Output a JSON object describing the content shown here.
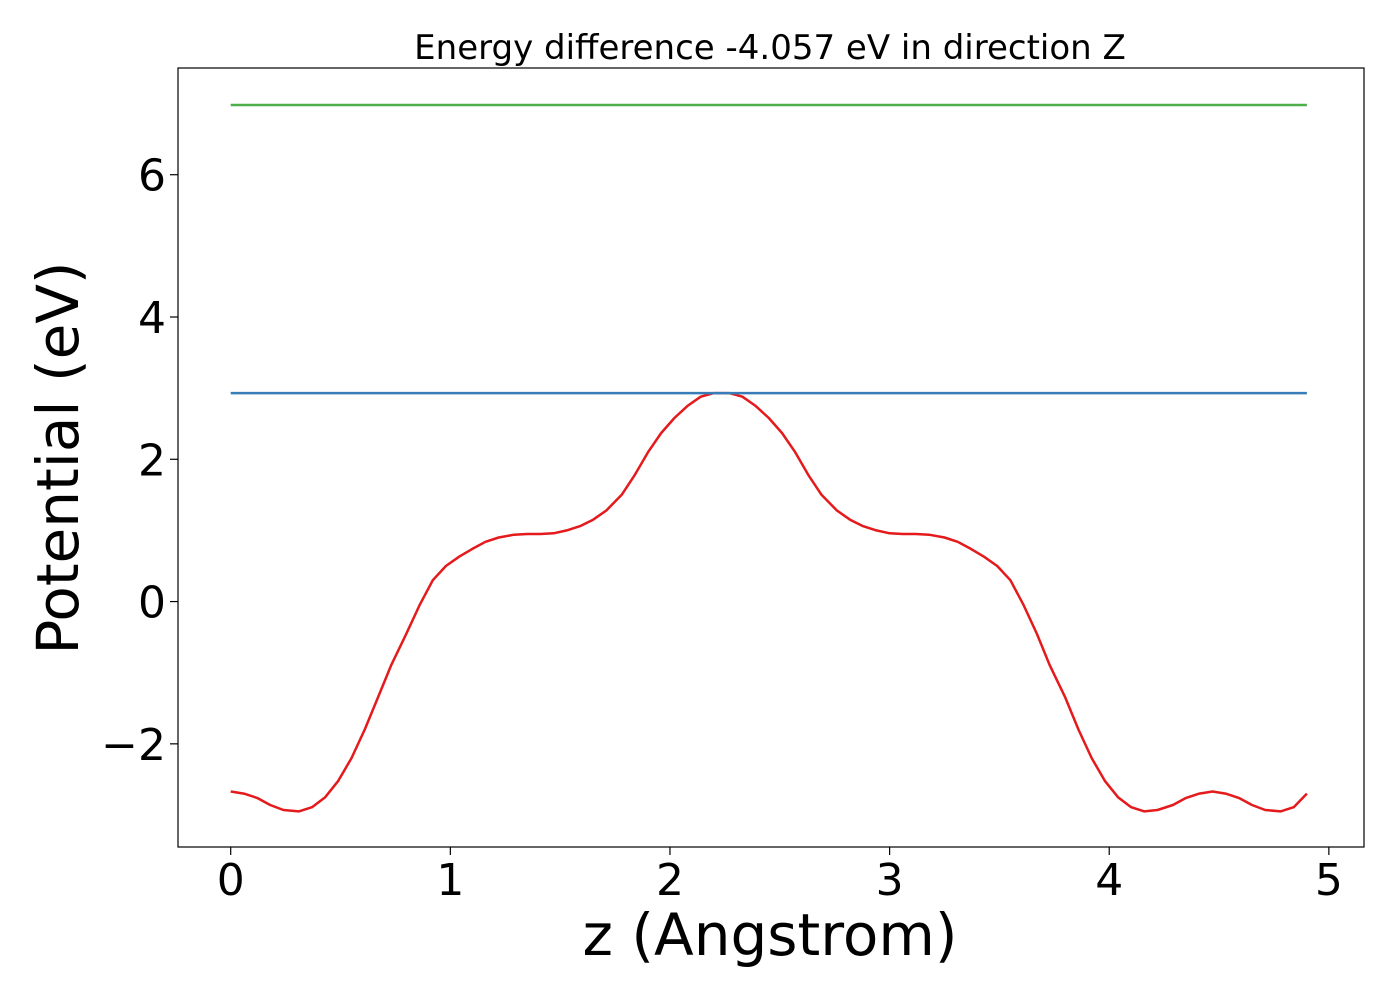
{
  "chart_data": {
    "type": "line",
    "title": "Energy difference -4.057 eV in direction Z",
    "xlabel": "z (Angstrom)",
    "ylabel": "Potential (eV)",
    "xlim": [
      -0.24,
      5.16
    ],
    "ylim": [
      -3.45,
      7.5
    ],
    "xticks": [
      0,
      1,
      2,
      3,
      4,
      5
    ],
    "yticks": [
      -2,
      0,
      2,
      4,
      6
    ],
    "xtick_labels": [
      "0",
      "1",
      "2",
      "3",
      "4",
      "5"
    ],
    "ytick_labels": [
      "−2",
      "0",
      "2",
      "4",
      "6"
    ],
    "grid": false,
    "series": [
      {
        "color": "#e41a1c",
        "x": [
          0.0,
          0.06,
          0.12,
          0.18,
          0.24,
          0.31,
          0.37,
          0.43,
          0.49,
          0.55,
          0.61,
          0.67,
          0.73,
          0.8,
          0.86,
          0.92,
          0.98,
          1.04,
          1.1,
          1.16,
          1.22,
          1.29,
          1.35,
          1.41,
          1.47,
          1.53,
          1.59,
          1.65,
          1.71,
          1.78,
          1.84,
          1.9,
          1.96,
          2.02,
          2.08,
          2.14,
          2.2,
          2.27,
          2.33,
          2.39,
          2.45,
          2.51,
          2.57,
          2.63,
          2.69,
          2.76,
          2.82,
          2.88,
          2.94,
          3.0,
          3.06,
          3.12,
          3.18,
          3.25,
          3.31,
          3.37,
          3.43,
          3.49,
          3.55,
          3.61,
          3.67,
          3.73,
          3.8,
          3.86,
          3.92,
          3.98,
          4.04,
          4.1,
          4.16,
          4.22,
          4.29,
          4.35,
          4.41,
          4.47,
          4.53,
          4.59,
          4.65,
          4.71,
          4.78,
          4.84,
          4.9
        ],
        "y": [
          -2.67,
          -2.7,
          -2.76,
          -2.86,
          -2.93,
          -2.95,
          -2.89,
          -2.75,
          -2.52,
          -2.2,
          -1.8,
          -1.35,
          -0.9,
          -0.45,
          -0.05,
          0.3,
          0.5,
          0.63,
          0.74,
          0.84,
          0.9,
          0.94,
          0.95,
          0.95,
          0.96,
          1.0,
          1.06,
          1.15,
          1.28,
          1.5,
          1.78,
          2.1,
          2.37,
          2.58,
          2.75,
          2.88,
          2.93,
          2.93,
          2.88,
          2.75,
          2.58,
          2.37,
          2.1,
          1.78,
          1.5,
          1.28,
          1.15,
          1.06,
          1.0,
          0.96,
          0.95,
          0.95,
          0.94,
          0.9,
          0.84,
          0.74,
          0.63,
          0.5,
          0.3,
          -0.05,
          -0.45,
          -0.9,
          -1.35,
          -1.8,
          -2.2,
          -2.52,
          -2.75,
          -2.89,
          -2.95,
          -2.93,
          -2.86,
          -2.76,
          -2.7,
          -2.67,
          -2.7,
          -2.76,
          -2.86,
          -2.93,
          -2.95,
          -2.89,
          -2.7
        ]
      },
      {
        "color": "#377eb8",
        "x": [
          0.0,
          4.9
        ],
        "y": [
          2.93,
          2.93
        ]
      },
      {
        "color": "#4daf4a",
        "x": [
          0.0,
          4.9
        ],
        "y": [
          6.98,
          6.98
        ]
      }
    ]
  }
}
